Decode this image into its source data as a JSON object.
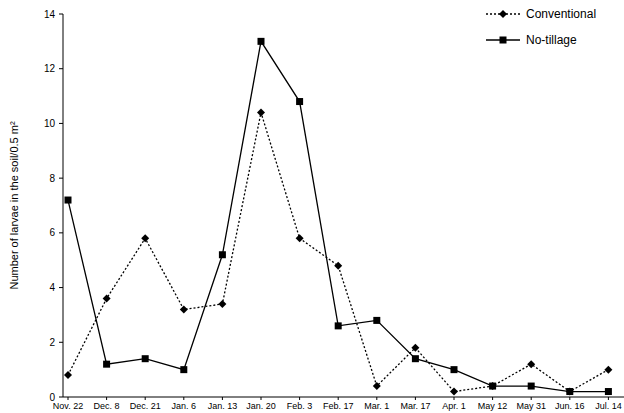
{
  "chart_data": {
    "type": "line",
    "y_label": "Number of larvae in the soil/0.5 m²",
    "categories": [
      "Nov. 22",
      "Dec. 8",
      "Dec. 21",
      "Jan. 6",
      "Jan. 13",
      "Jan. 20",
      "Feb. 3",
      "Feb. 17",
      "Mar. 1",
      "Mar. 17",
      "Apr. 1",
      "May 12",
      "May 31",
      "Jun. 16",
      "Jul. 14"
    ],
    "series": [
      {
        "name": "Conventional",
        "color": "#000000",
        "marker": "diamond",
        "line_style": "dotted",
        "values": [
          0.8,
          3.6,
          5.8,
          3.2,
          3.4,
          10.4,
          5.8,
          4.8,
          0.4,
          1.8,
          0.2,
          0.4,
          1.2,
          0.2,
          1.0
        ]
      },
      {
        "name": "No-tillage",
        "color": "#000000",
        "marker": "square",
        "line_style": "solid",
        "values": [
          7.2,
          1.2,
          1.4,
          1.0,
          5.2,
          13.0,
          10.8,
          2.6,
          2.8,
          1.4,
          1.0,
          0.4,
          0.4,
          0.2,
          0.2
        ]
      }
    ],
    "ylim": [
      0,
      14
    ],
    "yticks": [
      0,
      2,
      4,
      6,
      8,
      10,
      12,
      14
    ],
    "grid": false,
    "legend": "upper right"
  }
}
